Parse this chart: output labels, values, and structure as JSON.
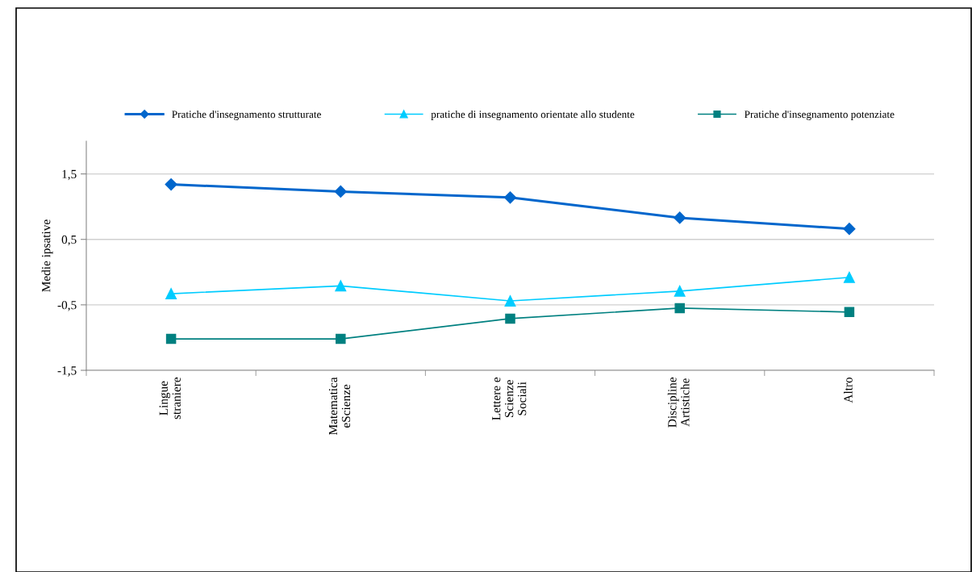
{
  "chart_data": {
    "type": "line",
    "ylabel": "Medie ipsative",
    "categories": [
      "Lingue\nstraniere",
      "Matematica\neScienze",
      "Lettere e\nScienze\nSociali",
      "Discipline\nArtistiche",
      "Altro"
    ],
    "series": [
      {
        "name": "Pratiche d'insegnamento strutturate",
        "color": "#0066cc",
        "marker": "diamond",
        "values": [
          1.34,
          1.23,
          1.14,
          0.83,
          0.66
        ]
      },
      {
        "name": "pratiche di insegnamento orientate allo studente",
        "color": "#00ccff",
        "marker": "triangle",
        "values": [
          -0.33,
          -0.21,
          -0.44,
          -0.29,
          -0.08
        ]
      },
      {
        "name": "Pratiche d'insegnamento potenziate",
        "color": "#008080",
        "marker": "square",
        "values": [
          -1.02,
          -1.02,
          -0.71,
          -0.55,
          -0.61
        ]
      }
    ],
    "ylim": [
      -1.5,
      2
    ],
    "yticks": [
      {
        "value": -1.5,
        "label": "-1,5"
      },
      {
        "value": -0.5,
        "label": "-0,5"
      },
      {
        "value": 0.5,
        "label": "0,5"
      },
      {
        "value": 1.5,
        "label": "1,5"
      }
    ],
    "grid": "y",
    "legend": "top"
  }
}
